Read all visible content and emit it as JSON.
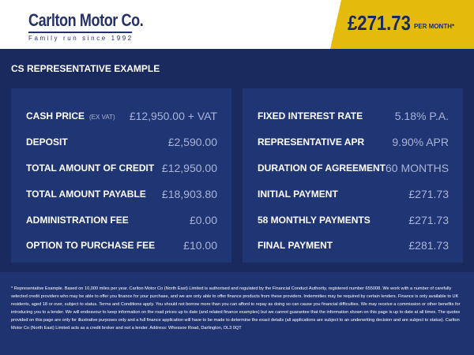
{
  "header": {
    "logo_name": "Carlton Motor Co.",
    "logo_tagline": "Family run since 1992",
    "monthly_price": "£271.73",
    "per_month_label": "PER MONTH*"
  },
  "title": "CS REPRESENTATIVE EXAMPLE",
  "left_rows": [
    {
      "label": "CASH PRICE",
      "note": "(EX VAT)",
      "value": "£12,950.00 + VAT"
    },
    {
      "label": "DEPOSIT",
      "value": "£2,590.00"
    },
    {
      "label": "TOTAL AMOUNT OF CREDIT",
      "value": "£12,950.00"
    },
    {
      "label": "TOTAL AMOUNT PAYABLE",
      "value": "£18,903.80"
    },
    {
      "label": "ADMINISTRATION FEE",
      "value": "£0.00"
    },
    {
      "label": "OPTION TO PURCHASE FEE",
      "value": "£10.00"
    }
  ],
  "right_rows": [
    {
      "label": "FIXED INTEREST RATE",
      "value": "5.18% P.A."
    },
    {
      "label": "REPRESENTATIVE APR",
      "value": "9.90% APR"
    },
    {
      "label": "DURATION OF AGREEMENT",
      "value": "60 MONTHS"
    },
    {
      "label": "INITIAL PAYMENT",
      "value": "£271.73"
    },
    {
      "label": "58 MONTHLY PAYMENTS",
      "value": "£271.73"
    },
    {
      "label": "FINAL PAYMENT",
      "value": "£281.73"
    }
  ],
  "disclaimer": "* Representative Example. Based on 10,000 miles per year. Carlton Motor Co (North East) Limited is authorised and regulated by the Financial Conduct Authority, registered number 655008. We work with a number of carefully selected credit providers who may be able to offer you finance for your purchase, and we are only able to offer finance products from these providers. Indemnities may be required by certain lenders. Finance is only available to UK residents, aged 18 or over, subject to status. Terms and Conditions apply. You should not borrow more than you can afford to repay as doing so can cause you financial difficulties. We may receive a commission or other benefits for introducing you to a lender. We will endeavour to keep information on the road prices up to date (and related finance examples) but we cannot guarantee that the information shown on this page is up to date at all times. The quotes provided on this page are only for illustrative purposes only and a full finance application will have to be made to determine the exact details (all applications are subject to an underwriting decision and are subject to status). Carlton Motor Co (North East) Limited acts as a credit broker and not a lender. Address: Whessoe Road, Darlington, DL3 0QT",
  "colors": {
    "navy": "#1b2a5e",
    "panel": "#203574",
    "yellow": "#e4bb0c",
    "value_text": "#a9b4d8"
  }
}
